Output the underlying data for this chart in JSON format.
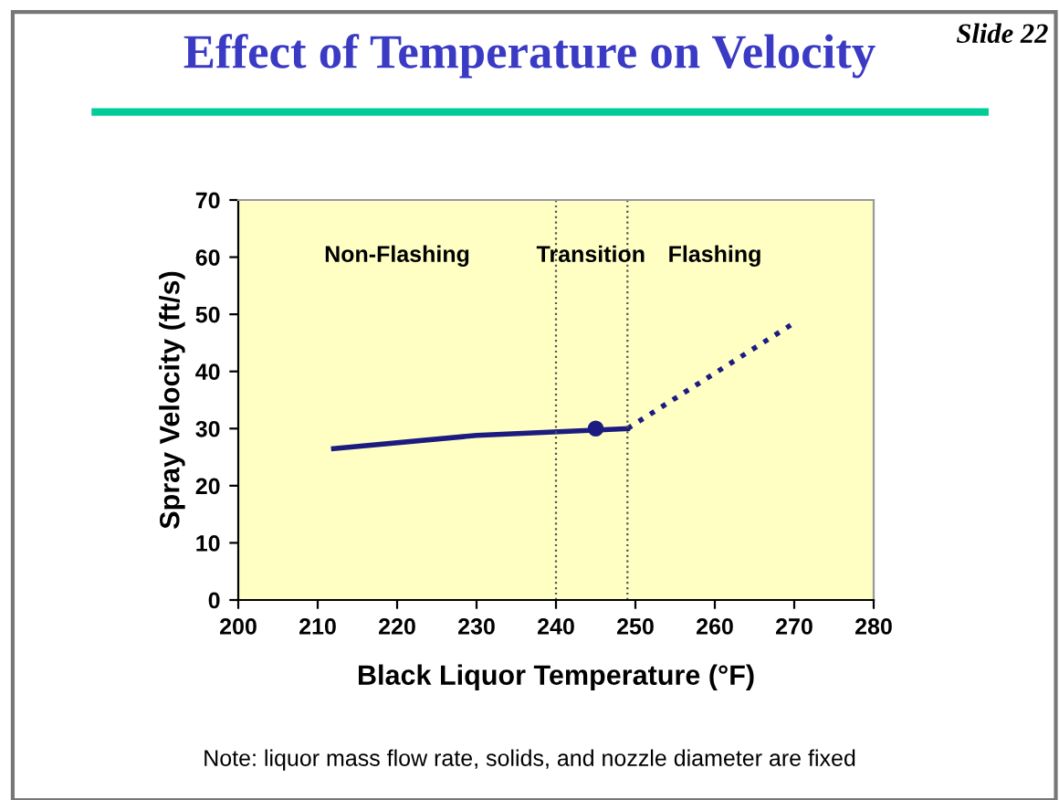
{
  "chart_data": {
    "type": "line",
    "title": "Effect of Temperature on Velocity",
    "xlabel": "Black Liquor Temperature (°F)",
    "ylabel": "Spray Velocity (ft/s)",
    "annotations": [
      "Non-Flashing",
      "Transition",
      "Flashing",
      "Slide 22",
      "Note: liquor mass flow rate, solids, and nozzle diameter are fixed"
    ],
    "series": [
      {
        "color": "#1c1c80",
        "x": [
          212,
          230,
          249
        ],
        "values": [
          26.5,
          28.8,
          30
        ],
        "line_style": "solid",
        "marker": "none"
      },
      {
        "color": "#1c1c80",
        "x": [
          249,
          270
        ],
        "values": [
          30,
          48.5
        ],
        "line_style": "dotted",
        "marker": "none"
      },
      {
        "type": "scatter",
        "color": "#1c1c80",
        "x": [
          245
        ],
        "values": [
          30
        ],
        "marker": "circle"
      }
    ],
    "xlim": [
      200,
      280
    ],
    "xticks": [
      200,
      210,
      220,
      230,
      240,
      250,
      260,
      270,
      280
    ],
    "ylim": [
      0,
      70
    ],
    "yticks": [
      0,
      10,
      20,
      30,
      40,
      50,
      60,
      70
    ],
    "ref_lines": [
      {
        "axis": "x",
        "value": 240,
        "line_style": "dotted",
        "color": "#555555"
      },
      {
        "axis": "x",
        "value": 249,
        "line_style": "dotted",
        "color": "#555555"
      }
    ],
    "grid": false,
    "legend": false
  }
}
